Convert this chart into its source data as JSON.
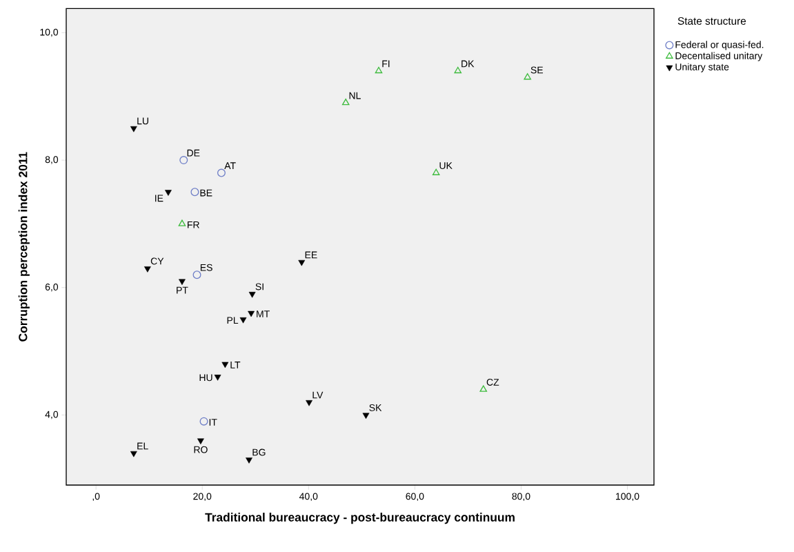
{
  "chart_data": {
    "type": "scatter",
    "xlabel": "Traditional bureaucracy - post-bureaucracy continuum",
    "ylabel": "Corruption perception index 2011",
    "legend_title": "State structure",
    "legend": "top right",
    "grid": false,
    "xlim": [
      -5.6,
      105
    ],
    "ylim": [
      2.9,
      10.38
    ],
    "xticks": [
      {
        "value": 0,
        "label": ",0"
      },
      {
        "value": 20,
        "label": "20,0"
      },
      {
        "value": 40,
        "label": "40,0"
      },
      {
        "value": 60,
        "label": "60,0"
      },
      {
        "value": 80,
        "label": "80,0"
      },
      {
        "value": 100,
        "label": "100,0"
      }
    ],
    "yticks": [
      {
        "value": 4,
        "label": "4,0"
      },
      {
        "value": 6,
        "label": "6,0"
      },
      {
        "value": 8,
        "label": "8,0"
      },
      {
        "value": 10,
        "label": "10,0"
      }
    ],
    "series": [
      {
        "name": "Federal or quasi-fed.",
        "color": "#6f7fc7",
        "marker": "circle",
        "x": [
          16.5,
          23.6,
          18.6,
          19.0,
          20.3
        ],
        "values": [
          8.0,
          7.8,
          7.5,
          6.2,
          3.9
        ]
      },
      {
        "name": "Decentalised unitary",
        "color": "#3dbb3d",
        "marker": "triangle",
        "x": [
          53.2,
          68.1,
          81.2,
          47.0,
          64.0,
          72.9,
          16.2
        ],
        "values": [
          9.4,
          9.4,
          9.3,
          8.9,
          7.8,
          4.4,
          7.0
        ]
      },
      {
        "name": "Unitary state",
        "color": "#000000",
        "marker": "triangle",
        "x": [
          7.1,
          13.6,
          9.7,
          16.2,
          38.7,
          29.4,
          29.2,
          27.7,
          24.3,
          22.9,
          40.1,
          50.8,
          7.1,
          19.7,
          28.8
        ],
        "values": [
          8.5,
          7.5,
          6.3,
          6.1,
          6.4,
          5.9,
          5.6,
          5.5,
          4.8,
          4.6,
          4.2,
          4.0,
          3.4,
          3.6,
          3.3
        ]
      }
    ],
    "annotations": [
      {
        "text": "DE",
        "x": 16.5,
        "y": 8.0
      },
      {
        "text": "AT",
        "x": 23.6,
        "y": 7.8
      },
      {
        "text": "BE",
        "x": 18.6,
        "y": 7.5
      },
      {
        "text": "ES",
        "x": 19.0,
        "y": 6.2
      },
      {
        "text": "IT",
        "x": 20.3,
        "y": 3.9
      },
      {
        "text": "FI",
        "x": 53.2,
        "y": 9.4
      },
      {
        "text": "DK",
        "x": 68.1,
        "y": 9.4
      },
      {
        "text": "SE",
        "x": 81.2,
        "y": 9.3
      },
      {
        "text": "NL",
        "x": 47.0,
        "y": 8.9
      },
      {
        "text": "UK",
        "x": 64.0,
        "y": 7.8
      },
      {
        "text": "CZ",
        "x": 72.9,
        "y": 4.4
      },
      {
        "text": "FR",
        "x": 16.2,
        "y": 7.0
      },
      {
        "text": "LU",
        "x": 7.1,
        "y": 8.5
      },
      {
        "text": "IE",
        "x": 13.6,
        "y": 7.5
      },
      {
        "text": "CY",
        "x": 9.7,
        "y": 6.3
      },
      {
        "text": "PT",
        "x": 16.2,
        "y": 6.1
      },
      {
        "text": "EE",
        "x": 38.7,
        "y": 6.4
      },
      {
        "text": "SI",
        "x": 29.4,
        "y": 5.9
      },
      {
        "text": "MT",
        "x": 29.2,
        "y": 5.6
      },
      {
        "text": "PL",
        "x": 27.7,
        "y": 5.5
      },
      {
        "text": "LT",
        "x": 24.3,
        "y": 4.8
      },
      {
        "text": "HU",
        "x": 22.9,
        "y": 4.6
      },
      {
        "text": "LV",
        "x": 40.1,
        "y": 4.2
      },
      {
        "text": "SK",
        "x": 50.8,
        "y": 4.0
      },
      {
        "text": "EL",
        "x": 7.1,
        "y": 3.4
      },
      {
        "text": "RO",
        "x": 19.7,
        "y": 3.6
      },
      {
        "text": "BG",
        "x": 28.8,
        "y": 3.3
      }
    ]
  }
}
